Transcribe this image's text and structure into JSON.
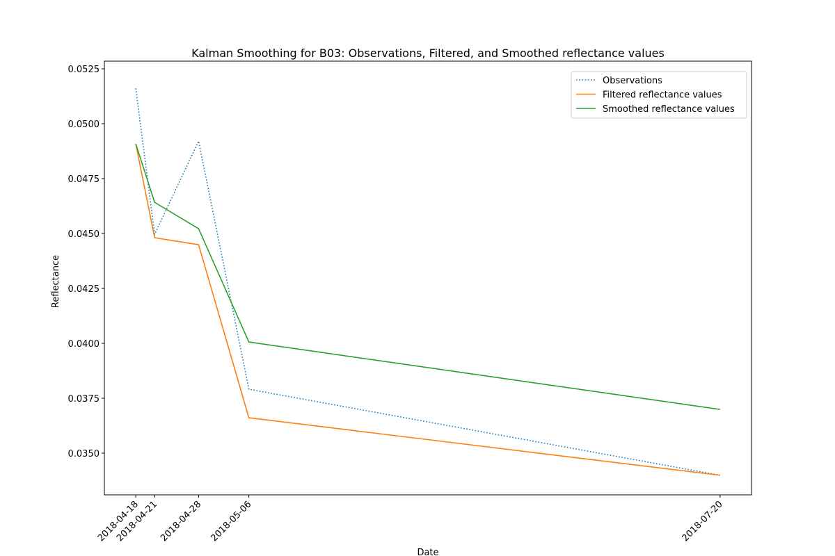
{
  "chart_data": {
    "type": "line",
    "title": "Kalman Smoothing for  B03: Observations, Filtered, and Smoothed reflectance values",
    "x_label": "Date",
    "y_label": "Reflectance",
    "x": [
      "2018-04-18",
      "2018-04-21",
      "2018-04-28",
      "2018-05-06",
      "2018-07-20"
    ],
    "xticks": [
      "2018-04-18",
      "2018-04-21",
      "2018-04-28",
      "2018-05-06",
      "2018-07-20"
    ],
    "xlim": [
      "2018-04-13",
      "2018-07-25"
    ],
    "ylim": [
      0.0331,
      0.05285
    ],
    "yticks": [
      0.0525,
      {
        "value": 0.05,
        "label": "0.0500"
      },
      0.0475,
      {
        "value": 0.045,
        "label": "0.0450"
      },
      0.0425,
      {
        "value": 0.04,
        "label": "0.0400"
      },
      0.0375,
      {
        "value": 0.035,
        "label": "0.0350"
      }
    ],
    "grid": false,
    "legend": "upper right",
    "series": [
      {
        "name": "Observations",
        "color": "#1f77b4",
        "linestyle": "dotted",
        "values": [
          0.05161,
          0.04497,
          0.04921,
          0.03791,
          0.03399
        ]
      },
      {
        "name": "Filtered reflectance values",
        "color": "#ff7f0e",
        "linestyle": "solid",
        "values": [
          0.04908,
          0.04481,
          0.04449,
          0.03661,
          0.03399
        ]
      },
      {
        "name": "Smoothed reflectance values",
        "color": "#2ca02c",
        "linestyle": "solid",
        "values": [
          0.04908,
          0.04642,
          0.04522,
          0.04006,
          0.03699
        ]
      }
    ]
  }
}
